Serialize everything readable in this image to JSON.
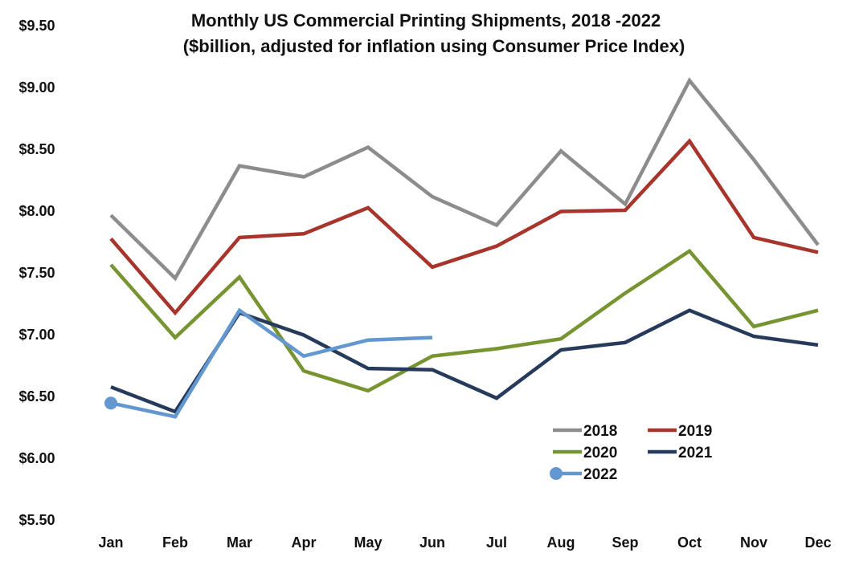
{
  "chart_data": {
    "type": "line",
    "title": "Monthly US Commercial Printing Shipments, 2018 -2022",
    "subtitle": "($billion, adjusted for inflation using Consumer Price Index)",
    "xlabel": "",
    "ylabel": "",
    "ylim": [
      5.5,
      9.5
    ],
    "yticks": [
      5.5,
      6.0,
      6.5,
      7.0,
      7.5,
      8.0,
      8.5,
      9.0,
      9.5
    ],
    "ytick_labels": [
      "$5.50",
      "$6.00",
      "$6.50",
      "$7.00",
      "$7.50",
      "$8.00",
      "$8.50",
      "$9.00",
      "$9.50"
    ],
    "categories": [
      "Jan",
      "Feb",
      "Mar",
      "Apr",
      "May",
      "Jun",
      "Jul",
      "Aug",
      "Sep",
      "Oct",
      "Nov",
      "Dec"
    ],
    "grid": false,
    "legend_position": "bottom-right",
    "series": [
      {
        "name": "2018",
        "color": "#8c8c8c",
        "values": [
          7.96,
          7.45,
          8.36,
          8.27,
          8.51,
          8.11,
          7.88,
          8.48,
          8.05,
          9.05,
          8.41,
          7.72
        ]
      },
      {
        "name": "2019",
        "color": "#a8352c",
        "values": [
          7.77,
          7.17,
          7.78,
          7.81,
          8.02,
          7.54,
          7.71,
          7.99,
          8.0,
          8.56,
          7.78,
          7.66
        ]
      },
      {
        "name": "2020",
        "color": "#76942f",
        "values": [
          7.56,
          6.97,
          7.46,
          6.7,
          6.54,
          6.82,
          6.88,
          6.96,
          7.33,
          7.67,
          7.06,
          7.19
        ]
      },
      {
        "name": "2021",
        "color": "#263a5c",
        "values": [
          6.57,
          6.37,
          7.17,
          6.99,
          6.72,
          6.71,
          6.48,
          6.87,
          6.93,
          7.19,
          6.98,
          6.91
        ]
      },
      {
        "name": "2022",
        "color": "#6297cf",
        "values": [
          6.44,
          6.33,
          7.19,
          6.82,
          6.95,
          6.97,
          null,
          null,
          null,
          null,
          null,
          null
        ],
        "first_marker": true
      }
    ]
  }
}
